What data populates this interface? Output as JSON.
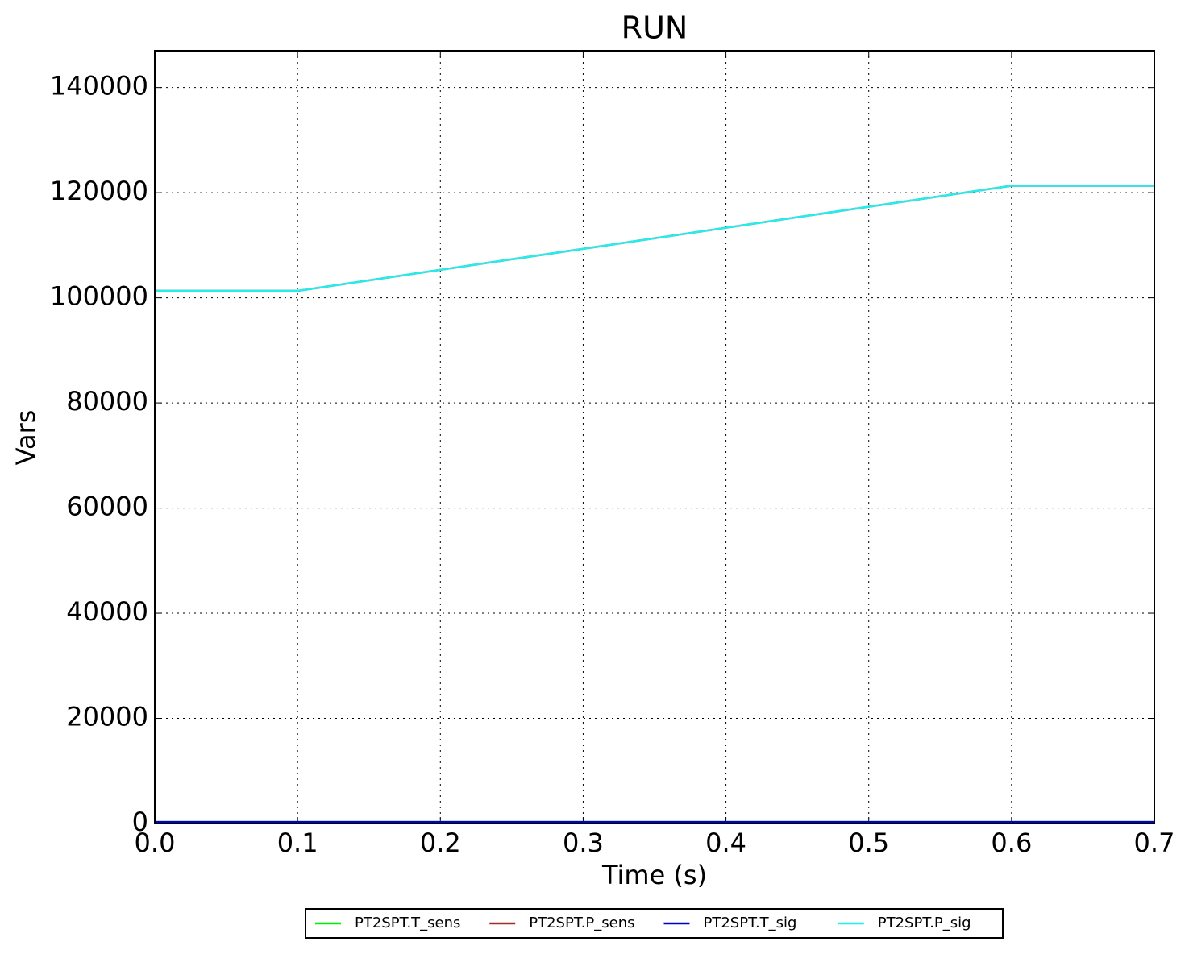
{
  "chart_data": {
    "type": "line",
    "title": "RUN",
    "x_label": "Time (s)",
    "y_label": "Vars",
    "x": [
      0,
      0.1,
      0.6,
      0.7
    ],
    "series": [
      {
        "name": "PT2SPT.T_sens",
        "color": "#00ee00",
        "values": [
          293.15,
          293.15,
          293.15,
          293.15
        ]
      },
      {
        "name": "PT2SPT.P_sens",
        "color": "#a52a2a",
        "values": [
          101325,
          101325,
          121325,
          121325
        ]
      },
      {
        "name": "PT2SPT.T_sig",
        "color": "#0000cc",
        "values": [
          293.15,
          293.15,
          293.15,
          293.15
        ]
      },
      {
        "name": "PT2SPT.P_sig",
        "color": "#22eeee",
        "values": [
          101325,
          101325,
          121325,
          121325
        ]
      }
    ],
    "xlim": [
      0,
      0.7
    ],
    "ylim": [
      0,
      147000
    ],
    "xticks": [
      {
        "value": 0,
        "label": "0.0"
      },
      0.1,
      0.2,
      0.3,
      0.4,
      0.5,
      0.6,
      0.7
    ],
    "yticks": [
      0,
      20000,
      40000,
      60000,
      80000,
      100000,
      120000,
      140000
    ],
    "grid": true,
    "legend": "bottom"
  }
}
